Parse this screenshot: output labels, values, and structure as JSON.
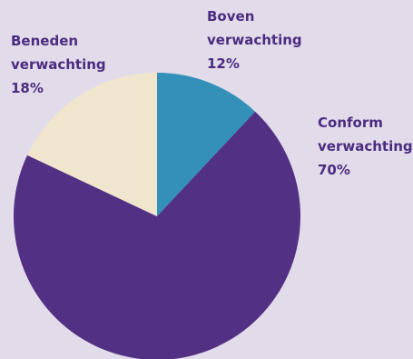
{
  "chart_data": {
    "type": "pie",
    "slices": [
      {
        "label_line1": "Boven",
        "label_line2": "verwachting",
        "value": 12,
        "value_label": "12%",
        "color": "#3390b8"
      },
      {
        "label_line1": "Conform",
        "label_line2": "verwachting",
        "value": 70,
        "value_label": "70%",
        "color": "#523083"
      },
      {
        "label_line1": "Beneden",
        "label_line2": "verwachting",
        "value": 18,
        "value_label": "18%",
        "color": "#f0e5cd"
      }
    ],
    "start_angle": "12 o'clock",
    "direction": "clockwise",
    "label_color": "#4b2c80",
    "background": "#e2dcea"
  }
}
